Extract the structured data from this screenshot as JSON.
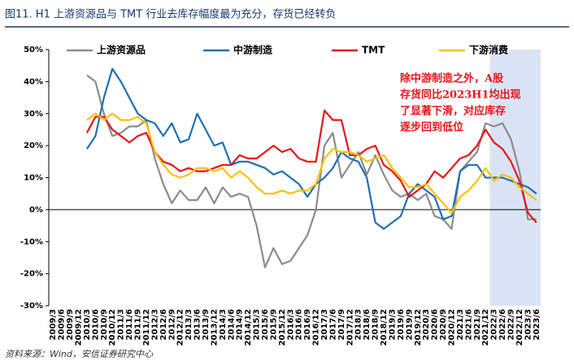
{
  "chart_data": {
    "type": "line",
    "title": "图11. H1 上游资源品与 TMT 行业去库存幅度最为充分，存货已经转负",
    "source": "资料来源：Wind，安信证券研究中心",
    "annotation": [
      "除中游制造之外，A股",
      "存货同比2023H1均出现",
      "了显著下滑，对应库存",
      "逐步回到低位"
    ],
    "highlight": {
      "from": "2022/3",
      "to": "2023/6",
      "color": "#dae3f3"
    },
    "categories": [
      "2009/3",
      "2009/6",
      "2009/9",
      "2009/12",
      "2010/3",
      "2010/6",
      "2010/9",
      "2010/12",
      "2011/3",
      "2011/6",
      "2011/9",
      "2011/12",
      "2012/3",
      "2012/6",
      "2012/9",
      "2012/12",
      "2013/3",
      "2013/6",
      "2013/9",
      "2013/12",
      "2014/3",
      "2014/6",
      "2014/9",
      "2014/12",
      "2015/3",
      "2015/6",
      "2015/9",
      "2015/12",
      "2016/3",
      "2016/6",
      "2016/9",
      "2016/12",
      "2017/3",
      "2017/6",
      "2017/9",
      "2017/12",
      "2018/3",
      "2018/6",
      "2018/9",
      "2018/12",
      "2019/3",
      "2019/6",
      "2019/9",
      "2019/12",
      "2020/3",
      "2020/6",
      "2020/9",
      "2020/12",
      "2021/3",
      "2021/6",
      "2021/9",
      "2021/12",
      "2022/3",
      "2022/6",
      "2022/9",
      "2022/12",
      "2023/3",
      "2023/6"
    ],
    "series": [
      {
        "name": "上游资源品",
        "color": "#8c8c8c",
        "values": [
          null,
          null,
          null,
          null,
          42,
          40,
          30,
          23,
          24,
          26,
          26,
          28,
          16,
          8,
          2,
          6,
          3,
          3,
          7,
          2,
          7,
          4,
          5,
          4,
          -5,
          -18,
          -12,
          -17,
          -16,
          -12,
          -8,
          0,
          20,
          24,
          10,
          14,
          18,
          11,
          17,
          11,
          6,
          4,
          5,
          3,
          5,
          -2,
          -3,
          -6,
          12,
          15,
          18,
          27,
          26,
          27,
          22,
          12,
          -3,
          -3
        ]
      },
      {
        "name": "中游制造",
        "color": "#1f6fb4",
        "values": [
          null,
          null,
          null,
          null,
          19,
          23,
          35,
          44,
          40,
          35,
          30,
          28,
          27,
          23,
          27,
          21,
          22,
          30,
          25,
          20,
          21,
          14,
          15,
          15,
          14,
          13,
          11,
          12,
          10,
          8,
          4,
          8,
          10,
          13,
          18,
          16,
          15,
          10,
          -4,
          -6,
          -4,
          -2,
          5,
          8,
          6,
          4,
          -3,
          -2,
          12,
          14,
          14,
          10,
          10,
          10,
          9,
          8,
          7,
          5
        ]
      },
      {
        "name": "TMT",
        "color": "#e8141b",
        "values": [
          null,
          null,
          null,
          null,
          24,
          29,
          29,
          25,
          23,
          21,
          23,
          24,
          18,
          15,
          14,
          12,
          13,
          12,
          12,
          13,
          14,
          14,
          17,
          16,
          16,
          18,
          20,
          18,
          19,
          16,
          15,
          15,
          31,
          28,
          28,
          17,
          17,
          19,
          20,
          14,
          12,
          9,
          4,
          6,
          8,
          12,
          10,
          13,
          16,
          17,
          20,
          25,
          21,
          19,
          15,
          9,
          -1,
          -4
        ]
      },
      {
        "name": "下游消费",
        "color": "#ffc000",
        "values": [
          null,
          null,
          null,
          null,
          28,
          30,
          28,
          30,
          28,
          28,
          29,
          27,
          18,
          14,
          11,
          10,
          11,
          13,
          13,
          12,
          13,
          10,
          12,
          10,
          7,
          5,
          5,
          6,
          5,
          6,
          6,
          8,
          16,
          19,
          18,
          18,
          17,
          15,
          16,
          17,
          13,
          10,
          7,
          7,
          8,
          5,
          2,
          -1,
          4,
          6,
          9,
          13,
          9,
          11,
          10,
          7,
          5,
          3
        ]
      }
    ],
    "ylim": [
      -30,
      50
    ],
    "yticks": [
      {
        "value": -30,
        "label": "-30%"
      },
      {
        "value": -20,
        "label": "-20%"
      },
      {
        "value": -10,
        "label": "-10%"
      },
      {
        "value": 0,
        "label": "0%"
      },
      {
        "value": 10,
        "label": "10%"
      },
      {
        "value": 20,
        "label": "20%"
      },
      {
        "value": 30,
        "label": "30%"
      },
      {
        "value": 40,
        "label": "40%"
      },
      {
        "value": 50,
        "label": "50%"
      }
    ]
  }
}
